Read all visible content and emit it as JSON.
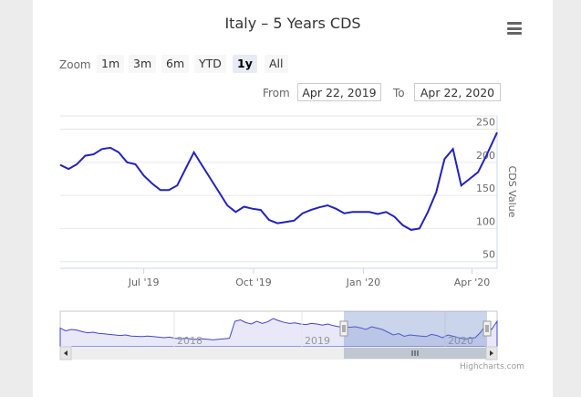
{
  "title": "Italy – 5 Years CDS",
  "zoom": {
    "label": "Zoom",
    "buttons": [
      "1m",
      "3m",
      "6m",
      "YTD",
      "1y",
      "All"
    ],
    "selected": "1y"
  },
  "range": {
    "from_label": "From",
    "from_value": "Apr 22, 2019",
    "to_label": "To",
    "to_value": "Apr 22, 2020"
  },
  "credits": "Highcharts.com",
  "colors": {
    "line": "#2222bb",
    "navigator_fill": "#e8e8f8",
    "navigator_mask": "rgba(102,133,194,0.35)"
  },
  "chart_data": {
    "type": "line",
    "ylabel": "CDS Value",
    "y_ticks": [
      50,
      100,
      150,
      200,
      250
    ],
    "ylim": [
      40,
      270
    ],
    "x_tick_labels": [
      {
        "label": "Jul '19",
        "date": "2019-07-01"
      },
      {
        "label": "Oct '19",
        "date": "2019-10-01"
      },
      {
        "label": "Jan '20",
        "date": "2020-01-01"
      },
      {
        "label": "Apr '20",
        "date": "2020-04-01"
      }
    ],
    "xlim": [
      "2019-04-22",
      "2020-04-22"
    ],
    "series": [
      {
        "x": [
          "2019-04-22",
          "2019-04-29",
          "2019-05-06",
          "2019-05-13",
          "2019-05-20",
          "2019-05-27",
          "2019-06-03",
          "2019-06-10",
          "2019-06-17",
          "2019-06-24",
          "2019-07-01",
          "2019-07-08",
          "2019-07-15",
          "2019-07-22",
          "2019-07-29",
          "2019-08-05",
          "2019-08-12",
          "2019-08-19",
          "2019-08-26",
          "2019-09-02",
          "2019-09-09",
          "2019-09-16",
          "2019-09-23",
          "2019-09-30",
          "2019-10-07",
          "2019-10-14",
          "2019-10-21",
          "2019-10-28",
          "2019-11-04",
          "2019-11-11",
          "2019-11-18",
          "2019-11-25",
          "2019-12-02",
          "2019-12-09",
          "2019-12-16",
          "2019-12-23",
          "2019-12-30",
          "2020-01-06",
          "2020-01-13",
          "2020-01-20",
          "2020-01-27",
          "2020-02-03",
          "2020-02-10",
          "2020-02-17",
          "2020-02-24",
          "2020-03-02",
          "2020-03-09",
          "2020-03-16",
          "2020-03-23",
          "2020-03-30",
          "2020-04-06",
          "2020-04-13",
          "2020-04-22"
        ],
        "y": [
          196,
          190,
          197,
          210,
          212,
          220,
          222,
          215,
          200,
          197,
          180,
          168,
          158,
          158,
          165,
          190,
          215,
          195,
          175,
          155,
          135,
          125,
          133,
          130,
          128,
          113,
          108,
          110,
          112,
          123,
          128,
          132,
          135,
          130,
          123,
          125,
          125,
          125,
          122,
          125,
          118,
          105,
          98,
          100,
          125,
          155,
          205,
          220,
          165,
          175,
          185,
          210,
          245
        ]
      }
    ],
    "navigator": {
      "tick_labels": [
        "2018",
        "2019",
        "2020"
      ]
    }
  }
}
